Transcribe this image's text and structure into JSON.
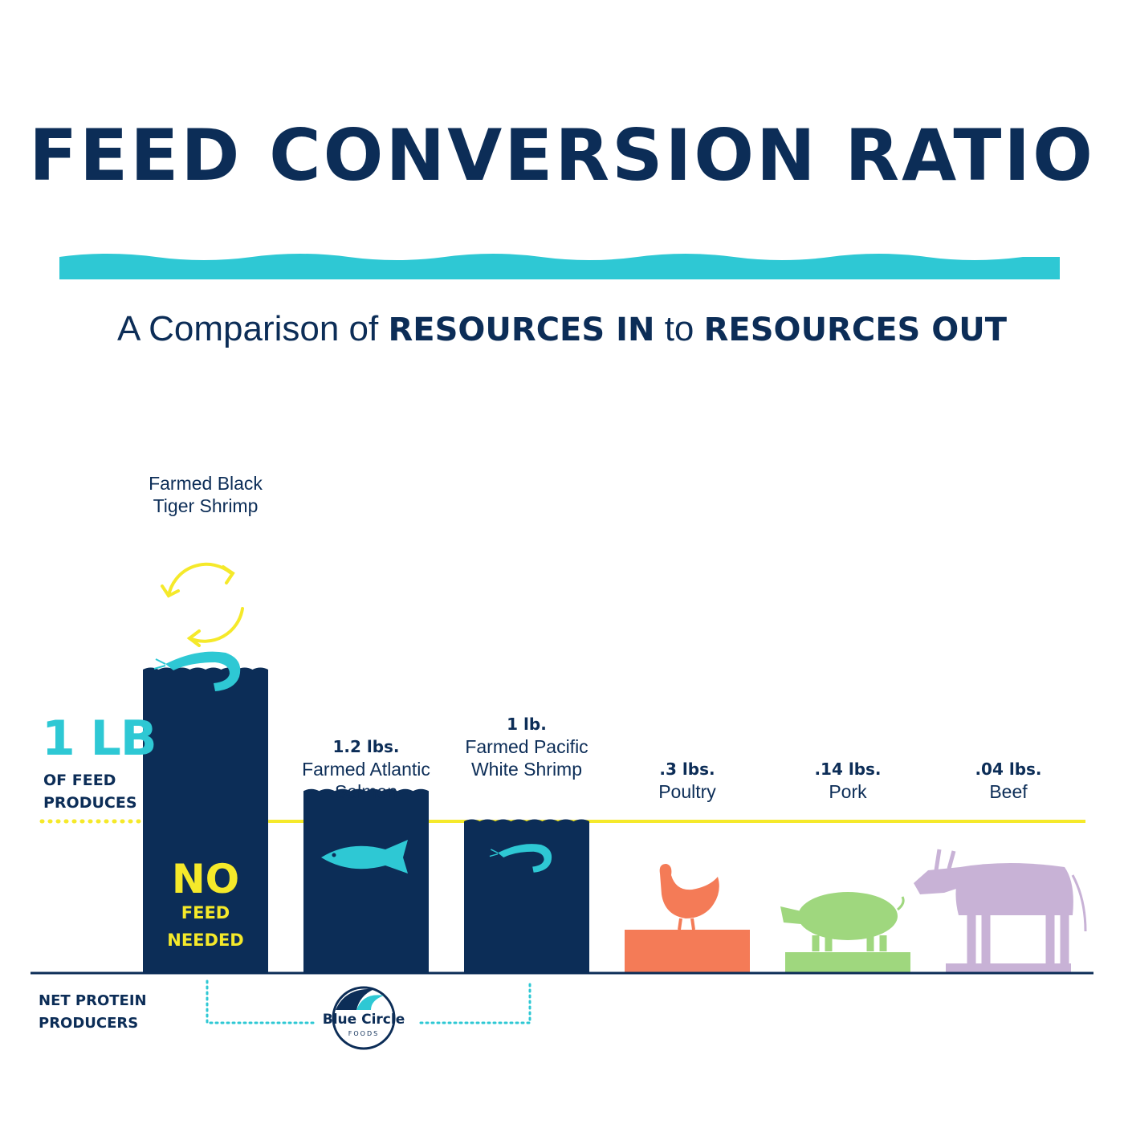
{
  "title": "FEED CONVERSION RATIO",
  "subtitle": {
    "prefix": "A Comparison of ",
    "bold1": "RESOURCES IN",
    "middle": " to ",
    "bold2": "RESOURCES OUT"
  },
  "side_label": {
    "big": "1 LB",
    "small": "OF FEED PRODUCES"
  },
  "net_protein_label": "NET PROTEIN PRODUCERS",
  "no_feed": {
    "big": "NO",
    "line1": "FEED",
    "line2": "NEEDED"
  },
  "logo": {
    "name": "Blue Circle",
    "sub": "FOODS"
  },
  "colors": {
    "navy": "#0c2d57",
    "teal": "#2ec8d4",
    "yellow": "#f5e92a",
    "poultry": "#f47b57",
    "pork": "#9fd77e",
    "beef": "#c8b2d6"
  },
  "chart_data": {
    "type": "bar",
    "reference_line": {
      "value": 1,
      "label": "1 LB OF FEED PRODUCES"
    },
    "categories": [
      {
        "name": "Farmed Black Tiger Shrimp",
        "value_label": "",
        "value": 2.0,
        "icon": "shrimp-icon",
        "color": "#0c2d57",
        "note": "NO FEED NEEDED"
      },
      {
        "name": "Farmed Atlantic Salmon",
        "value_label": "1.2 lbs.",
        "value": 1.2,
        "icon": "fish-icon",
        "color": "#0c2d57"
      },
      {
        "name": "Farmed Pacific White Shrimp",
        "value_label": "1 lb.",
        "value": 1.0,
        "icon": "shrimp-icon",
        "color": "#0c2d57"
      },
      {
        "name": "Poultry",
        "value_label": ".3 lbs.",
        "value": 0.3,
        "icon": "chicken-icon",
        "color": "#f47b57"
      },
      {
        "name": "Pork",
        "value_label": ".14 lbs.",
        "value": 0.14,
        "icon": "pig-icon",
        "color": "#9fd77e"
      },
      {
        "name": "Beef",
        "value_label": ".04 lbs.",
        "value": 0.04,
        "icon": "cow-icon",
        "color": "#c8b2d6"
      }
    ]
  }
}
